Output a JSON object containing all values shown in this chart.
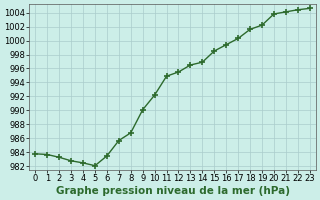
{
  "x": [
    0,
    1,
    2,
    3,
    4,
    5,
    6,
    7,
    8,
    9,
    10,
    11,
    12,
    13,
    14,
    15,
    16,
    17,
    18,
    19,
    20,
    21,
    22,
    23
  ],
  "y": [
    983.8,
    983.7,
    983.3,
    982.8,
    982.5,
    982.1,
    983.5,
    985.7,
    986.8,
    990.1,
    992.2,
    994.9,
    995.5,
    996.5,
    996.9,
    998.5,
    999.4,
    1000.3,
    1001.6,
    1002.2,
    1003.8,
    1004.1,
    1004.4,
    1004.6
  ],
  "line_color": "#2d6a2d",
  "marker": "+",
  "marker_size": 4,
  "marker_linewidth": 1.2,
  "line_width": 1.0,
  "background_color": "#cceee8",
  "grid_color": "#aacccc",
  "xlabel": "Graphe pression niveau de la mer (hPa)",
  "xlabel_fontsize": 7.5,
  "xlabel_fontweight": "bold",
  "tick_fontsize": 6,
  "ylim": [
    981.5,
    1005.2
  ],
  "yticks": [
    982,
    984,
    986,
    988,
    990,
    992,
    994,
    996,
    998,
    1000,
    1002,
    1004
  ],
  "xlim": [
    -0.5,
    23.5
  ],
  "xticks": [
    0,
    1,
    2,
    3,
    4,
    5,
    6,
    7,
    8,
    9,
    10,
    11,
    12,
    13,
    14,
    15,
    16,
    17,
    18,
    19,
    20,
    21,
    22,
    23
  ]
}
